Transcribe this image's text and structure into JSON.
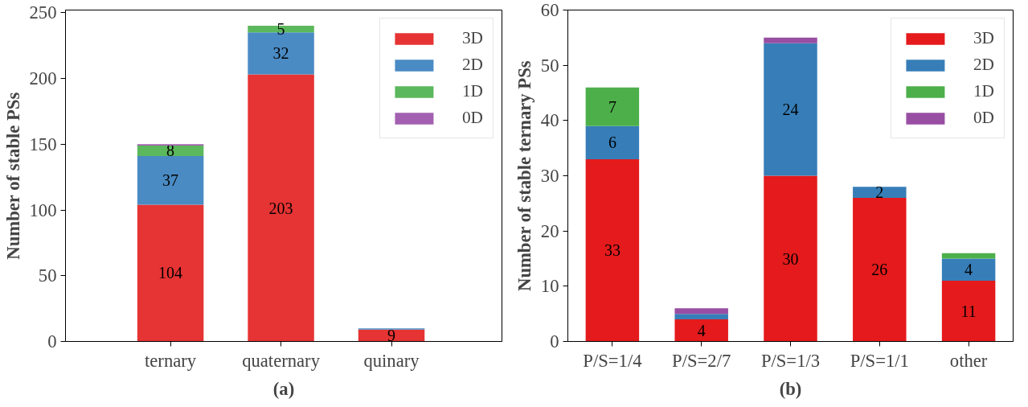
{
  "chart_data": [
    {
      "type": "bar",
      "stacked": true,
      "ylabel": "Number of stable PSs",
      "categories": [
        "ternary",
        "quaternary",
        "quinary"
      ],
      "ylim": [
        0,
        252
      ],
      "yticks": [
        0,
        50,
        100,
        150,
        200,
        250
      ],
      "legend": "top right",
      "grid": false,
      "annotations": [
        "(a)"
      ],
      "series": [
        {
          "name": "3D",
          "color": "#e63333",
          "values": [
            104,
            203,
            9
          ],
          "value_labels": [
            "104",
            "203",
            "9"
          ]
        },
        {
          "name": "2D",
          "color": "#4a8bc4",
          "values": [
            37,
            32,
            1
          ],
          "value_labels": [
            "37",
            "32",
            null
          ]
        },
        {
          "name": "1D",
          "color": "#5cb85c",
          "values": [
            8,
            5,
            0
          ],
          "value_labels": [
            "8",
            "5",
            null
          ]
        },
        {
          "name": "0D",
          "color": "#a360b0",
          "values": [
            1,
            0,
            0
          ],
          "value_labels": [
            null,
            null,
            null
          ]
        }
      ]
    },
    {
      "type": "bar",
      "stacked": true,
      "ylabel": "Number of stable ternary PSs",
      "categories": [
        "P/S=1/4",
        "P/S=2/7",
        "P/S=1/3",
        "P/S=1/1",
        "other"
      ],
      "ylim": [
        0,
        60
      ],
      "yticks": [
        0,
        10,
        20,
        30,
        40,
        50,
        60
      ],
      "legend": "top right",
      "grid": false,
      "annotations": [
        "(b)"
      ],
      "series": [
        {
          "name": "3D",
          "color": "#e41a1c",
          "values": [
            33,
            4,
            30,
            26,
            11
          ],
          "value_labels": [
            "33",
            "4",
            "30",
            "26",
            "11"
          ]
        },
        {
          "name": "2D",
          "color": "#377eb8",
          "values": [
            6,
            1,
            24,
            2,
            4
          ],
          "value_labels": [
            "6",
            null,
            "24",
            "2",
            "4"
          ]
        },
        {
          "name": "1D",
          "color": "#4daf4a",
          "values": [
            7,
            0,
            0,
            0,
            1
          ],
          "value_labels": [
            "7",
            null,
            null,
            null,
            null
          ]
        },
        {
          "name": "0D",
          "color": "#984ea3",
          "values": [
            0,
            1,
            1,
            0,
            0
          ],
          "value_labels": [
            null,
            null,
            null,
            null,
            null
          ]
        }
      ]
    }
  ]
}
